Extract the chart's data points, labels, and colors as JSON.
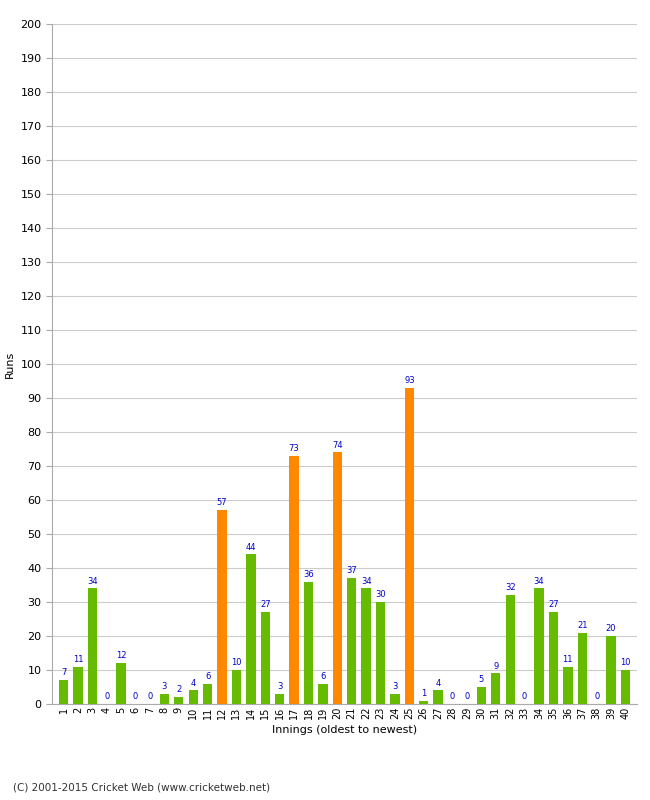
{
  "xlabel": "Innings (oldest to newest)",
  "ylabel": "Runs",
  "footer": "(C) 2001-2015 Cricket Web (www.cricketweb.net)",
  "ylim": [
    0,
    200
  ],
  "yticks": [
    0,
    10,
    20,
    30,
    40,
    50,
    60,
    70,
    80,
    90,
    100,
    110,
    120,
    130,
    140,
    150,
    160,
    170,
    180,
    190,
    200
  ],
  "innings": [
    1,
    2,
    3,
    4,
    5,
    6,
    7,
    8,
    9,
    10,
    11,
    12,
    13,
    14,
    15,
    16,
    17,
    18,
    19,
    20,
    21,
    22,
    23,
    24,
    25,
    26,
    27,
    28,
    29,
    30,
    31,
    32,
    33,
    34,
    35,
    36,
    37,
    38,
    39,
    40
  ],
  "values": [
    7,
    11,
    34,
    0,
    12,
    0,
    0,
    3,
    2,
    4,
    6,
    57,
    10,
    44,
    27,
    3,
    73,
    36,
    6,
    74,
    37,
    34,
    30,
    3,
    93,
    1,
    4,
    0,
    0,
    5,
    9,
    32,
    0,
    34,
    27,
    11,
    21,
    0,
    20,
    10
  ],
  "colors": [
    "#66bb00",
    "#66bb00",
    "#66bb00",
    "#66bb00",
    "#66bb00",
    "#66bb00",
    "#66bb00",
    "#66bb00",
    "#66bb00",
    "#66bb00",
    "#66bb00",
    "#ff8800",
    "#66bb00",
    "#66bb00",
    "#66bb00",
    "#66bb00",
    "#ff8800",
    "#66bb00",
    "#66bb00",
    "#ff8800",
    "#66bb00",
    "#66bb00",
    "#66bb00",
    "#66bb00",
    "#ff8800",
    "#66bb00",
    "#66bb00",
    "#66bb00",
    "#66bb00",
    "#66bb00",
    "#66bb00",
    "#66bb00",
    "#66bb00",
    "#66bb00",
    "#66bb00",
    "#66bb00",
    "#66bb00",
    "#66bb00",
    "#66bb00",
    "#66bb00"
  ],
  "label_color": "#0000cc",
  "background_color": "#ffffff",
  "grid_color": "#cccccc",
  "bar_width": 0.65
}
